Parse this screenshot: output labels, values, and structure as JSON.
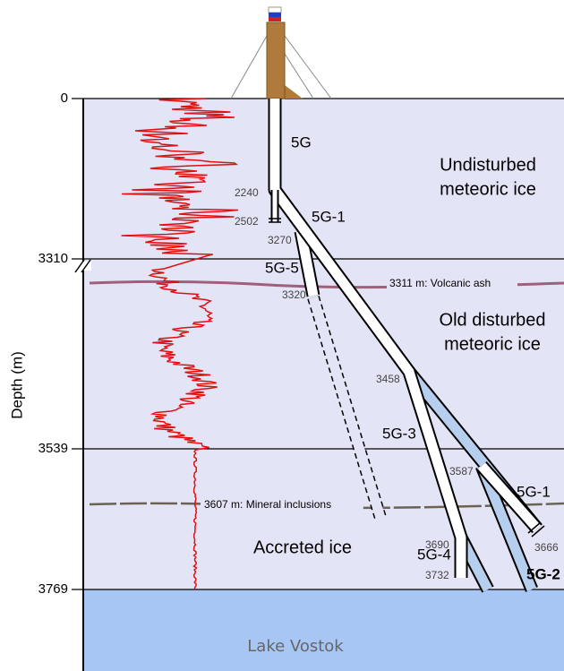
{
  "axis_label": "Depth (m)",
  "depth_ticks": [
    "0",
    "3310",
    "3539",
    "3769"
  ],
  "zones": [
    {
      "lines": [
        "Undisturbed",
        "meteoric ice"
      ]
    },
    {
      "lines": [
        "Old disturbed",
        "meteoric ice"
      ]
    },
    {
      "lines": [
        "Accreted ice"
      ]
    }
  ],
  "layers": [
    "3311 m: Volcanic ash",
    "3607 m: Mineral inclusions"
  ],
  "boreholes": [
    "5G",
    "5G-1",
    "5G-5",
    "5G-3",
    "5G-1",
    "5G-4",
    "5G-2"
  ],
  "depth_marks": [
    "2240",
    "2502",
    "3270",
    "3320",
    "3458",
    "3587",
    "3690",
    "3666",
    "3732"
  ],
  "lake": "Lake Vostok"
}
